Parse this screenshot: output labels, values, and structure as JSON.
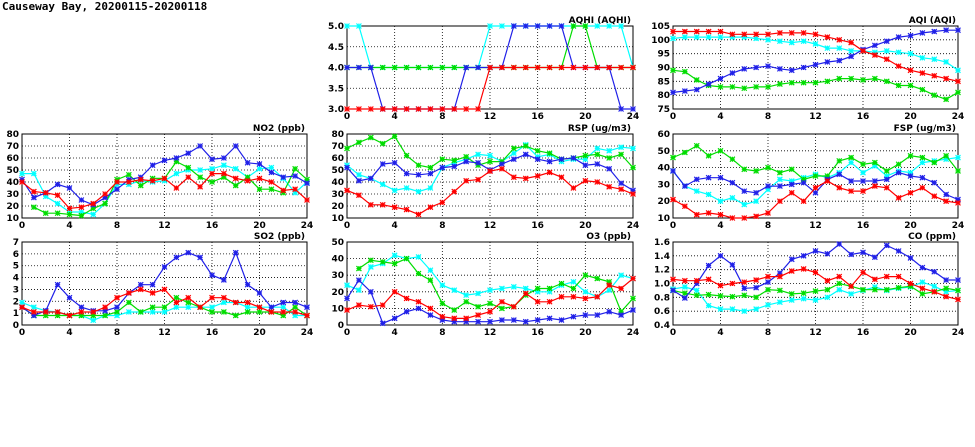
{
  "title": "Causeway Bay, 20200115-20200118",
  "chart_data": [
    {
      "type": "line",
      "title": "AQHI (AQHI)",
      "ylim": [
        3,
        5
      ],
      "yticks": [
        3.0,
        3.5,
        4.0,
        4.5,
        5.0
      ],
      "ydec": 1,
      "xlim": [
        0,
        24
      ],
      "xticks": [
        0,
        4,
        8,
        12,
        16,
        20,
        24
      ],
      "grid": true,
      "series": [
        {
          "color": "#00ffff",
          "values": [
            5,
            5,
            4,
            4,
            4,
            4,
            4,
            4,
            4,
            4,
            4,
            4,
            5,
            5,
            5,
            5,
            5,
            5,
            5,
            5,
            5,
            5,
            5,
            5,
            4
          ]
        },
        {
          "color": "#00dd00",
          "values": [
            4,
            4,
            4,
            4,
            4,
            4,
            4,
            4,
            4,
            4,
            4,
            4,
            4,
            4,
            4,
            4,
            4,
            4,
            4,
            5,
            5,
            4,
            4,
            4,
            4
          ]
        },
        {
          "color": "#2020e8",
          "values": [
            4,
            4,
            4,
            3,
            3,
            3,
            3,
            3,
            3,
            3,
            4,
            4,
            4,
            4,
            5,
            5,
            5,
            5,
            5,
            4,
            4,
            4,
            4,
            3,
            3
          ]
        },
        {
          "color": "#ff0000",
          "values": [
            3,
            3,
            3,
            3,
            3,
            3,
            3,
            3,
            3,
            3,
            3,
            3,
            4,
            4,
            4,
            4,
            4,
            4,
            4,
            4,
            4,
            4,
            4,
            4,
            4
          ]
        }
      ]
    },
    {
      "type": "line",
      "title": "AQI (AQI)",
      "ylim": [
        75,
        105
      ],
      "yticks": [
        75,
        80,
        85,
        90,
        95,
        100,
        105
      ],
      "ydec": 0,
      "xlim": [
        0,
        24
      ],
      "xticks": [
        0,
        4,
        8,
        12,
        16,
        20,
        24
      ],
      "grid": true,
      "series": [
        {
          "color": "#00ffff",
          "values": [
            100.5,
            101,
            101,
            101,
            101,
            101,
            101,
            100.5,
            100,
            99.5,
            99,
            99.5,
            98.5,
            97,
            97,
            96,
            96,
            95.5,
            96,
            95.5,
            95,
            93.5,
            93,
            92,
            89
          ]
        },
        {
          "color": "#00dd00",
          "values": [
            89,
            88.5,
            85.5,
            83.5,
            83,
            83,
            82.5,
            83,
            83,
            84,
            84.5,
            84.5,
            84.5,
            85,
            86,
            86,
            85.5,
            86,
            85,
            83.5,
            83.5,
            82,
            80,
            78.5,
            81
          ]
        },
        {
          "color": "#2020e8",
          "values": [
            81,
            81.5,
            82,
            84,
            86,
            88,
            89.5,
            90,
            90.5,
            89.5,
            89,
            90,
            91,
            92,
            92.5,
            94,
            96.5,
            98,
            99.5,
            101,
            101.5,
            102.5,
            103,
            103.5,
            103.5
          ]
        },
        {
          "color": "#ff0000",
          "values": [
            103,
            103,
            103,
            103,
            103,
            102,
            102,
            102,
            102,
            102.5,
            102.5,
            102.5,
            102,
            101,
            100,
            99,
            96,
            94.5,
            93,
            90.5,
            89,
            88,
            87,
            86,
            85
          ]
        }
      ]
    },
    {
      "type": "line",
      "title": "NO2 (ppb)",
      "ylim": [
        10,
        80
      ],
      "yticks": [
        10,
        20,
        30,
        40,
        50,
        60,
        70,
        80
      ],
      "ydec": 0,
      "xlim": [
        0,
        24
      ],
      "xticks": [
        0,
        4,
        8,
        12,
        16,
        20,
        24
      ],
      "grid": true,
      "series": [
        {
          "color": "#00ffff",
          "values": [
            47,
            47,
            28,
            22,
            15,
            15,
            13,
            22,
            38,
            38,
            41,
            40,
            41,
            47,
            50,
            50,
            51,
            54,
            51,
            44,
            51,
            52,
            43,
            31,
            40
          ]
        },
        {
          "color": "#00dd00",
          "values": [
            null,
            19,
            14,
            14,
            13,
            12,
            18,
            22,
            42,
            46,
            37,
            43,
            43,
            57,
            52,
            44,
            40,
            44,
            37,
            44,
            34,
            34,
            31,
            51,
            42
          ]
        },
        {
          "color": "#2020e8",
          "values": [
            42,
            27,
            31,
            38,
            35,
            25,
            21,
            27,
            34,
            42,
            44,
            54,
            58,
            60,
            64,
            70,
            59,
            60,
            70,
            56,
            55,
            48,
            44,
            45,
            39
          ]
        },
        {
          "color": "#ff0000",
          "values": [
            40,
            32,
            31,
            29,
            18,
            19,
            22,
            30,
            40,
            40,
            42,
            41,
            43,
            35,
            44,
            36,
            47,
            47,
            43,
            41,
            43,
            40,
            33,
            34,
            25
          ]
        }
      ]
    },
    {
      "type": "line",
      "title": "RSP (ug/m3)",
      "ylim": [
        10,
        80
      ],
      "yticks": [
        10,
        20,
        30,
        40,
        50,
        60,
        70,
        80
      ],
      "ydec": 0,
      "xlim": [
        0,
        24
      ],
      "xticks": [
        0,
        4,
        8,
        12,
        16,
        20,
        24
      ],
      "grid": true,
      "series": [
        {
          "color": "#00ffff",
          "values": [
            54,
            46,
            43,
            38,
            33,
            35,
            32,
            35,
            52,
            56,
            59,
            63,
            62,
            57,
            64,
            71,
            61,
            63,
            57,
            59,
            59,
            68,
            66,
            69,
            68
          ]
        },
        {
          "color": "#00dd00",
          "values": [
            68,
            73,
            77,
            72,
            78,
            62,
            54,
            52,
            59,
            58,
            61,
            54,
            57,
            57,
            68,
            70,
            66,
            64,
            59,
            60,
            62,
            63,
            60,
            63,
            52
          ]
        },
        {
          "color": "#2020e8",
          "values": [
            52,
            41,
            43,
            55,
            56,
            47,
            46,
            47,
            52,
            53,
            57,
            56,
            50,
            55,
            59,
            63,
            59,
            57,
            59,
            60,
            54,
            55,
            51,
            39,
            33
          ]
        },
        {
          "color": "#ff0000",
          "values": [
            33,
            29,
            21,
            21,
            19,
            17,
            13,
            19,
            23,
            32,
            41,
            42,
            49,
            51,
            44,
            43,
            45,
            48,
            44,
            35,
            41,
            40,
            36,
            34,
            30
          ]
        }
      ]
    },
    {
      "type": "line",
      "title": "FSP (ug/m3)",
      "ylim": [
        10,
        60
      ],
      "yticks": [
        10,
        20,
        30,
        40,
        50,
        60
      ],
      "ydec": 0,
      "xlim": [
        0,
        24
      ],
      "xticks": [
        0,
        4,
        8,
        12,
        16,
        20,
        24
      ],
      "grid": true,
      "series": [
        {
          "color": "#00ffff",
          "values": [
            38,
            29,
            26,
            24,
            20,
            22,
            18,
            20,
            27,
            33,
            32,
            34,
            36,
            34,
            37,
            43,
            37,
            41,
            35,
            38,
            37,
            43,
            44,
            45,
            46
          ]
        },
        {
          "color": "#00dd00",
          "values": [
            46,
            49,
            53,
            47,
            50,
            45,
            39,
            38,
            40,
            37,
            39,
            33,
            35,
            35,
            44,
            46,
            42,
            43,
            38,
            42,
            47,
            46,
            43,
            47,
            38
          ]
        },
        {
          "color": "#2020e8",
          "values": [
            38,
            29,
            33,
            34,
            34,
            31,
            26,
            25,
            29,
            29,
            30,
            31,
            25,
            33,
            36,
            32,
            32,
            32,
            33,
            37,
            35,
            34,
            31,
            24,
            21
          ]
        },
        {
          "color": "#ff0000",
          "values": [
            21,
            17,
            12,
            13,
            12,
            10,
            10,
            11,
            13,
            20,
            25,
            20,
            28,
            32,
            28,
            26,
            26,
            29,
            28,
            22,
            25,
            28,
            23,
            20,
            19
          ]
        }
      ]
    },
    {
      "type": "line",
      "title": "SO2 (ppb)",
      "ylim": [
        0,
        7
      ],
      "yticks": [
        0,
        1,
        2,
        3,
        4,
        5,
        6,
        7
      ],
      "ydec": 0,
      "xlim": [
        0,
        24
      ],
      "xticks": [
        0,
        4,
        8,
        12,
        16,
        20,
        24
      ],
      "grid": true,
      "series": [
        {
          "color": "#00ffff",
          "values": [
            1.9,
            1.5,
            1.2,
            1.1,
            0.8,
            0.8,
            0.4,
            0.8,
            0.8,
            1.1,
            1.1,
            1.1,
            1.1,
            1.5,
            1.5,
            1.5,
            1.5,
            1.9,
            1.9,
            1.5,
            1.5,
            1.5,
            1.5,
            0.8,
            0.8
          ]
        },
        {
          "color": "#00dd00",
          "values": [
            1.5,
            0.8,
            0.8,
            0.8,
            0.8,
            0.8,
            0.8,
            0.8,
            1.1,
            1.9,
            1.1,
            1.5,
            1.5,
            2.3,
            1.9,
            1.5,
            1.1,
            1.1,
            0.8,
            1.1,
            1.1,
            1.1,
            0.8,
            1.5,
            0.8
          ]
        },
        {
          "color": "#2020e8",
          "values": [
            1.5,
            0.8,
            1.2,
            3.4,
            2.3,
            1.5,
            1.2,
            1.2,
            1.5,
            2.7,
            3.4,
            3.4,
            4.9,
            5.7,
            6.1,
            5.7,
            4.2,
            3.8,
            6.1,
            3.4,
            2.7,
            1.5,
            1.9,
            1.9,
            1.5
          ]
        },
        {
          "color": "#ff0000",
          "values": [
            1.5,
            1.1,
            1.1,
            1.1,
            0.8,
            1.1,
            1.1,
            1.5,
            2.3,
            2.7,
            3.0,
            2.7,
            3.0,
            1.9,
            2.3,
            1.5,
            2.3,
            2.3,
            1.9,
            1.9,
            1.5,
            1.1,
            1.1,
            1.1,
            0.8
          ]
        }
      ]
    },
    {
      "type": "line",
      "title": "O3 (ppb)",
      "ylim": [
        0,
        50
      ],
      "yticks": [
        0,
        10,
        20,
        30,
        40,
        50
      ],
      "ydec": 0,
      "xlim": [
        0,
        24
      ],
      "xticks": [
        0,
        4,
        8,
        12,
        16,
        20,
        24
      ],
      "grid": true,
      "series": [
        {
          "color": "#00ffff",
          "values": [
            24,
            21,
            35,
            37,
            42,
            40,
            41,
            33,
            24,
            21,
            18,
            19,
            21,
            22,
            23,
            22,
            20,
            20,
            24,
            26,
            20,
            17,
            21,
            30,
            28
          ]
        },
        {
          "color": "#00dd00",
          "values": [
            null,
            34,
            39,
            38,
            37,
            40,
            31,
            27,
            13,
            9,
            14,
            11,
            13,
            10,
            11,
            18,
            22,
            22,
            25,
            22,
            30,
            28,
            26,
            8,
            16
          ]
        },
        {
          "color": "#2020e8",
          "values": [
            16,
            27,
            20,
            1,
            4,
            8,
            10,
            6,
            3,
            2,
            2,
            2,
            2,
            3,
            3,
            2,
            3,
            4,
            3,
            5,
            6,
            6,
            8,
            6,
            9
          ]
        },
        {
          "color": "#ff0000",
          "values": [
            9,
            12,
            11,
            12,
            20,
            16,
            14,
            10,
            5,
            4,
            4,
            6,
            8,
            14,
            11,
            19,
            14,
            14,
            17,
            17,
            16,
            17,
            24,
            22,
            28
          ]
        }
      ]
    },
    {
      "type": "line",
      "title": "CO (ppm)",
      "ylim": [
        0.4,
        1.6
      ],
      "yticks": [
        0.4,
        0.6,
        0.8,
        1.0,
        1.2,
        1.4,
        1.6
      ],
      "ydec": 1,
      "xlim": [
        0,
        24
      ],
      "xticks": [
        0,
        4,
        8,
        12,
        16,
        20,
        24
      ],
      "grid": true,
      "series": [
        {
          "color": "#00ffff",
          "values": [
            0.92,
            0.95,
            0.9,
            0.68,
            0.63,
            0.63,
            0.6,
            0.63,
            0.69,
            0.73,
            0.76,
            0.78,
            0.76,
            0.8,
            0.91,
            0.85,
            0.9,
            0.95,
            0.9,
            0.93,
            0.95,
            1.02,
            0.96,
            0.88,
            0.9
          ]
        },
        {
          "color": "#00dd00",
          "values": [
            0.9,
            0.86,
            0.83,
            0.84,
            0.82,
            0.81,
            0.83,
            0.8,
            0.91,
            0.9,
            0.85,
            0.86,
            0.89,
            0.91,
            1.0,
            0.96,
            0.91,
            0.91,
            0.91,
            0.94,
            0.96,
            0.85,
            0.88,
            0.93,
            0.9
          ]
        },
        {
          "color": "#2020e8",
          "values": [
            0.9,
            0.79,
            1.0,
            1.26,
            1.4,
            1.27,
            0.93,
            0.94,
            1.02,
            1.15,
            1.35,
            1.4,
            1.47,
            1.43,
            1.57,
            1.42,
            1.45,
            1.38,
            1.55,
            1.47,
            1.37,
            1.23,
            1.17,
            1.05,
            1.05
          ]
        },
        {
          "color": "#ff0000",
          "values": [
            1.06,
            1.04,
            1.04,
            1.06,
            0.97,
            1.0,
            1.02,
            1.05,
            1.1,
            1.1,
            1.18,
            1.21,
            1.16,
            1.04,
            1.1,
            0.96,
            1.16,
            1.06,
            1.1,
            1.1,
            1.0,
            0.93,
            0.88,
            0.81,
            0.77
          ]
        }
      ]
    }
  ]
}
